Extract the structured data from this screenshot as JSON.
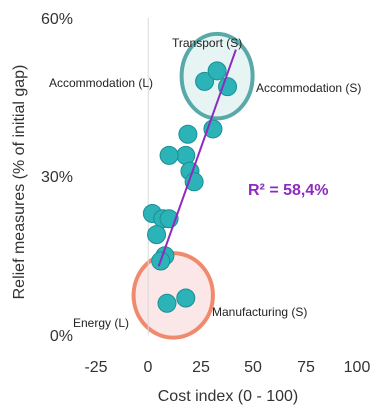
{
  "chart_data": {
    "type": "scatter",
    "xlabel": "Cost index (0 - 100)",
    "ylabel": "Relief measures (% of initial gap)",
    "xlim": [
      -25,
      100
    ],
    "ylim": [
      0,
      60
    ],
    "x_ticks": [
      "-25",
      "0",
      "25",
      "50",
      "75",
      "100"
    ],
    "y_ticks": [
      "0%",
      "30%",
      "60%"
    ],
    "points": [
      {
        "x": 27,
        "y": 48
      },
      {
        "x": 33,
        "y": 50
      },
      {
        "x": 38,
        "y": 47
      },
      {
        "x": 31,
        "y": 39
      },
      {
        "x": 19,
        "y": 38
      },
      {
        "x": 18,
        "y": 34
      },
      {
        "x": 10,
        "y": 34
      },
      {
        "x": 20,
        "y": 31
      },
      {
        "x": 22,
        "y": 29
      },
      {
        "x": 2,
        "y": 23
      },
      {
        "x": 7,
        "y": 22
      },
      {
        "x": 10,
        "y": 22
      },
      {
        "x": 4,
        "y": 19
      },
      {
        "x": 8,
        "y": 15
      },
      {
        "x": 6,
        "y": 14
      },
      {
        "x": 9,
        "y": 6
      },
      {
        "x": 18,
        "y": 7
      }
    ],
    "trendline": {
      "x1": 5,
      "y1": 13,
      "x2": 42,
      "y2": 54
    },
    "r_squared_label": "R² = 58,4%",
    "annotations": [
      {
        "text": "Transport (S)"
      },
      {
        "text": "Accommodation (L)"
      },
      {
        "text": "Accommodation (S)"
      },
      {
        "text": "Energy (L)"
      },
      {
        "text": "Manufacturing (S)"
      }
    ],
    "highlights": [
      {
        "cx": 33,
        "cy": 49,
        "rx": 17,
        "ry": 8,
        "color": "#5aa9a9",
        "fill": "#e6f4f4"
      },
      {
        "cx": 12,
        "cy": 7.5,
        "rx": 19,
        "ry": 8,
        "color": "#f08a6e",
        "fill": "#fbe7e7"
      }
    ],
    "colors": {
      "point": "#2bb3b8",
      "point_stroke": "#1a8f94",
      "trend": "#8e2bbf"
    },
    "grid": false
  }
}
